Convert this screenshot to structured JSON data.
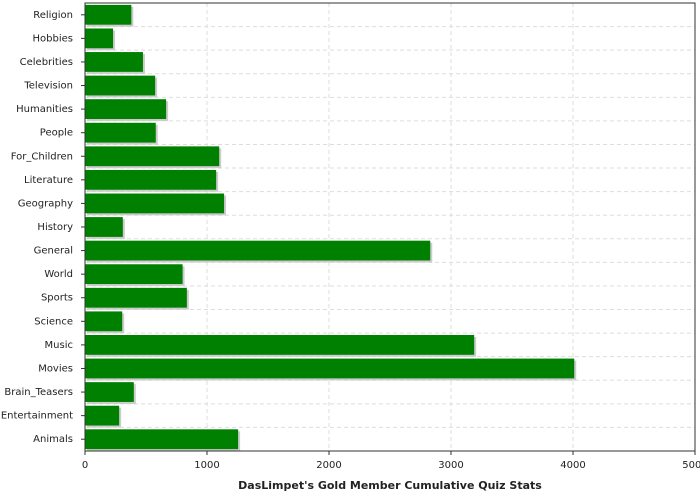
{
  "chart_data": {
    "type": "bar",
    "orientation": "horizontal",
    "title": "DasLimpet's Gold Member Cumulative Quiz Stats",
    "categories": [
      "Religion",
      "Hobbies",
      "Celebrities",
      "Television",
      "Humanities",
      "People",
      "For_Children",
      "Literature",
      "Geography",
      "History",
      "General",
      "World",
      "Sports",
      "Science",
      "Music",
      "Movies",
      "Brain_Teasers",
      "Entertainment",
      "Animals"
    ],
    "values": [
      380,
      230,
      475,
      575,
      665,
      580,
      1100,
      1075,
      1140,
      310,
      2830,
      800,
      835,
      305,
      3190,
      4010,
      400,
      280,
      1255
    ],
    "color": "#008000",
    "xlim": [
      0,
      5000
    ],
    "xticks": [
      0,
      1000,
      2000,
      3000,
      4000,
      5000
    ],
    "grid": true
  }
}
